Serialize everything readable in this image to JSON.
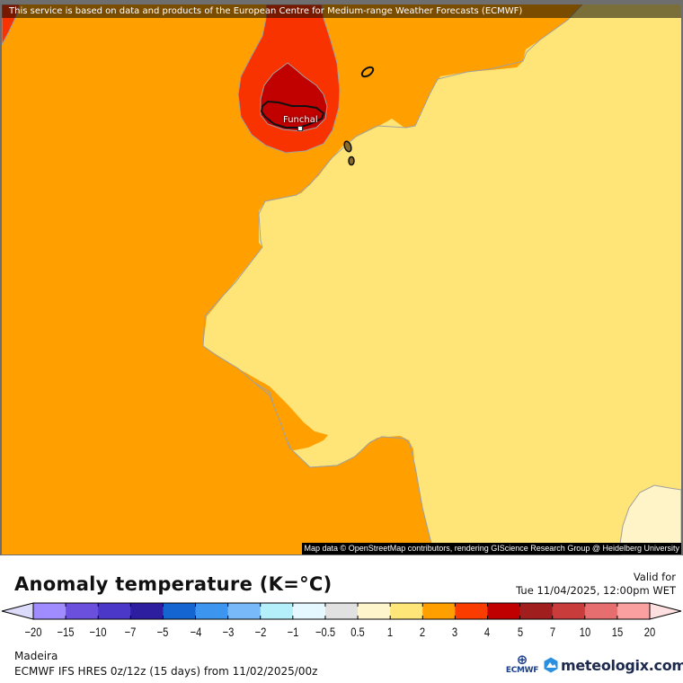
{
  "map": {
    "banner_text": "This service is based on data and products of the European Centre for Medium-range Weather Forecasts (ECMWF)",
    "attribution": "Map data © OpenStreetMap contributors, rendering GIScience Research Group @ Heidelberg University",
    "city": {
      "name": "Funchal"
    },
    "colors": {
      "band_2_3": "#ff9f00",
      "band_3_4": "#f93300",
      "band_4_5": "#c10000",
      "band_1_2": "#ffe577",
      "band_05_1": "#fff3c8",
      "contour_line": "#a0a0a0",
      "land_outline": "#000000"
    }
  },
  "header": {
    "title": "Anomaly temperature (K=°C)",
    "valid_label": "Valid for",
    "valid_time": "Tue 11/04/2025, 12:00pm WET"
  },
  "legend": {
    "ticks": [
      "-20",
      "-15",
      "-10",
      "-7",
      "-5",
      "-4",
      "-3",
      "-2",
      "-1",
      "-0.5",
      "0.5",
      "1",
      "2",
      "3",
      "4",
      "5",
      "7",
      "10",
      "15",
      "20"
    ],
    "low_arrow_color": "#dcdcfa",
    "high_arrow_color": "#ffe0e0",
    "bins": [
      {
        "range": "-20 to -15",
        "color": "#a08cff"
      },
      {
        "range": "-15 to -10",
        "color": "#6a50dc"
      },
      {
        "range": "-10 to -7",
        "color": "#4b37c8"
      },
      {
        "range": "-7 to -5",
        "color": "#2d1ea0"
      },
      {
        "range": "-5 to -4",
        "color": "#1464d2"
      },
      {
        "range": "-4 to -3",
        "color": "#3c96f0"
      },
      {
        "range": "-3 to -2",
        "color": "#78b9fa"
      },
      {
        "range": "-2 to -1",
        "color": "#b4f0fa"
      },
      {
        "range": "-1 to -0.5",
        "color": "#e6f8ff"
      },
      {
        "range": "-0.5 to 0.5",
        "color": "#e1e1e1"
      },
      {
        "range": "0.5 to 1",
        "color": "#fff5cc"
      },
      {
        "range": "1 to 2",
        "color": "#ffe678"
      },
      {
        "range": "2 to 3",
        "color": "#ffa000"
      },
      {
        "range": "3 to 4",
        "color": "#fa3c00"
      },
      {
        "range": "4 to 5",
        "color": "#c00000"
      },
      {
        "range": "5 to 7",
        "color": "#a01e1e"
      },
      {
        "range": "7 to 10",
        "color": "#c83c3c"
      },
      {
        "range": "10 to 15",
        "color": "#e66e6e"
      },
      {
        "range": "15 to 20",
        "color": "#faa0a0"
      }
    ]
  },
  "footer": {
    "region": "Madeira",
    "model": "ECMWF IFS HRES 0z/12z (15 days) from  11/02/2025/00z",
    "ecmwf_logo_text": "ECMWF",
    "brand": "meteologix.com"
  }
}
